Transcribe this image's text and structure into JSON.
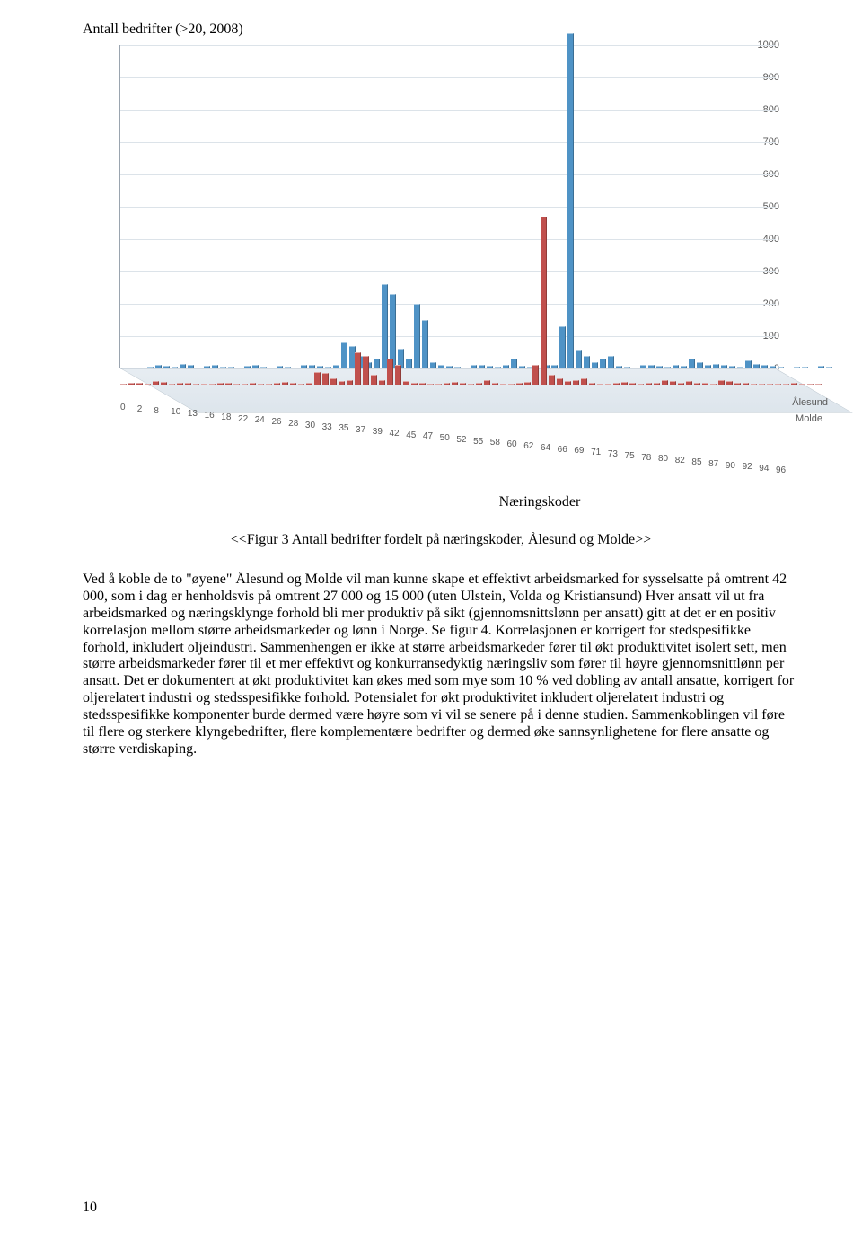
{
  "chart": {
    "title": "Antall bedrifter (>20, 2008)",
    "yticks": [
      "0",
      "100",
      "200",
      "300",
      "400",
      "500",
      "600",
      "700",
      "800",
      "900",
      "1000"
    ],
    "ymax": 1000,
    "series": [
      {
        "name": "Ålesund",
        "color": "#4f93c6",
        "values": [
          5,
          10,
          8,
          6,
          15,
          12,
          4,
          8,
          10,
          5,
          6,
          4,
          8,
          10,
          6,
          4,
          8,
          6,
          4,
          10,
          12,
          8,
          6,
          10,
          80,
          70,
          40,
          20,
          30,
          260,
          230,
          60,
          30,
          200,
          150,
          20,
          10,
          8,
          6,
          4,
          10,
          12,
          8,
          6,
          10,
          30,
          8,
          6,
          4,
          10,
          12,
          130,
          1035,
          55,
          40,
          20,
          30,
          40,
          8,
          6,
          4,
          10,
          12,
          8,
          6,
          10,
          8,
          30,
          20,
          10,
          15,
          10,
          8,
          6,
          25,
          15,
          10,
          8,
          6,
          4,
          5,
          6,
          4,
          8,
          6,
          4,
          2
        ]
      },
      {
        "name": "Molde",
        "color": "#c0504d",
        "values": [
          3,
          6,
          5,
          4,
          10,
          8,
          2,
          5,
          6,
          3,
          4,
          2,
          5,
          6,
          4,
          2,
          5,
          4,
          2,
          6,
          8,
          5,
          4,
          6,
          40,
          35,
          20,
          10,
          15,
          100,
          90,
          30,
          15,
          80,
          60,
          10,
          6,
          5,
          4,
          2,
          6,
          8,
          5,
          4,
          6,
          15,
          5,
          4,
          2,
          6,
          8,
          60,
          520,
          30,
          20,
          10,
          15,
          20,
          5,
          4,
          2,
          6,
          8,
          5,
          4,
          6,
          5,
          15,
          10,
          6,
          10,
          6,
          5,
          4,
          15,
          10,
          6,
          5,
          4,
          2,
          3,
          4,
          2,
          5,
          4,
          2,
          1
        ]
      }
    ],
    "xticks": [
      "0",
      "2",
      "8",
      "10",
      "13",
      "16",
      "18",
      "22",
      "24",
      "26",
      "28",
      "30",
      "33",
      "35",
      "37",
      "39",
      "42",
      "45",
      "47",
      "50",
      "52",
      "55",
      "58",
      "60",
      "62",
      "64",
      "66",
      "69",
      "71",
      "73",
      "75",
      "78",
      "80",
      "82",
      "85",
      "87",
      "90",
      "92",
      "94",
      "96"
    ],
    "series_label_right": [
      "Ålesund",
      "Molde"
    ],
    "grid_color": "#dce3e9",
    "tick_color": "#595959",
    "floor_bg": "#e2e9ef"
  },
  "figure_label": "Næringskoder",
  "figure_caption": "<<Figur 3 Antall bedrifter fordelt på næringskoder, Ålesund og Molde>>",
  "body_text": "Ved å koble de to \"øyene\" Ålesund og Molde vil man kunne skape et effektivt arbeidsmarked for sysselsatte på omtrent 42 000, som i dag er henholdsvis på omtrent 27 000 og 15 000 (uten Ulstein, Volda og Kristiansund) Hver ansatt vil ut fra arbeidsmarked og næringsklynge forhold bli mer produktiv på sikt (gjennomsnittslønn  per ansatt) gitt at det er en positiv korrelasjon mellom større arbeidsmarkeder og lønn i Norge. Se figur 4. Korrelasjonen er korrigert for stedspesifikke forhold, inkludert oljeindustri. Sammenhengen er ikke at større arbeidsmarkeder fører til økt produktivitet isolert sett, men større arbeidsmarkeder fører til et mer effektivt og konkurransedyktig næringsliv som fører til høyre gjennomsnittlønn per ansatt. Det er dokumentert at økt produktivitet kan økes med som mye som 10 % ved dobling av antall ansatte, korrigert for oljerelatert industri og stedsspesifikke forhold. Potensialet for økt produktivitet inkludert oljerelatert industri og stedsspesifikke komponenter burde dermed være høyre som vi vil se senere på i denne studien.  Sammenkoblingen vil føre til flere og sterkere klyngebedrifter, flere komplementære bedrifter og dermed øke sannsynlighetene for flere ansatte og større verdiskaping.",
  "page_number": "10"
}
